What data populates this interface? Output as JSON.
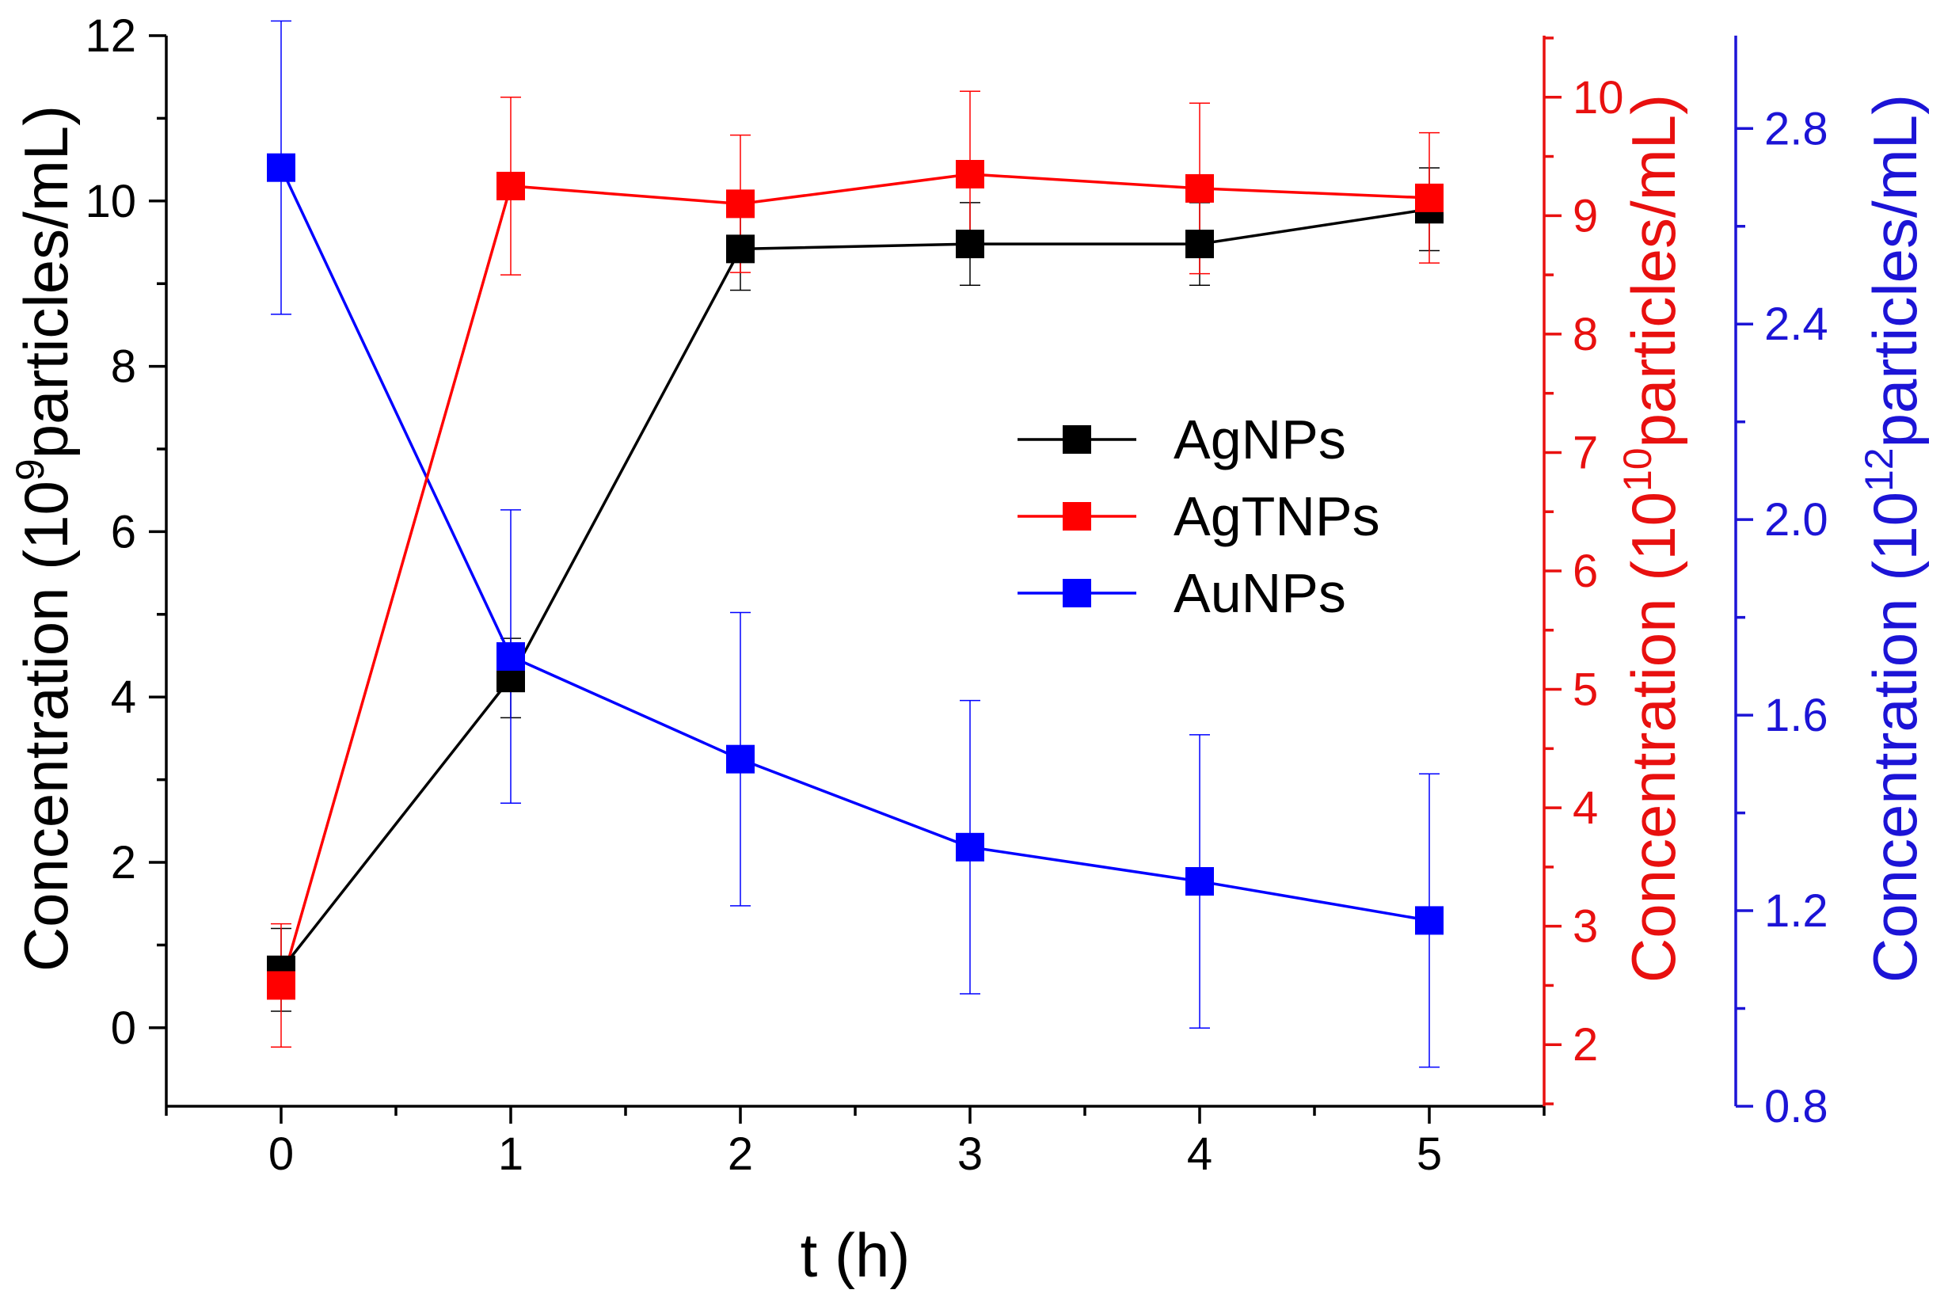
{
  "chart_data": {
    "type": "line",
    "x": [
      0,
      1,
      2,
      3,
      4,
      5
    ],
    "x_ticks": [
      "0",
      "1",
      "2",
      "3",
      "4",
      "5"
    ],
    "xlabel": "t (h)",
    "xlim": [
      -0.5,
      5.5
    ],
    "legend_position": "center-right",
    "grid": false,
    "y_axes": {
      "left": {
        "label_main": "Concentration (10",
        "label_sup": "9",
        "label_tail": "particles/mL)",
        "color": "#000000",
        "ylim": [
          -0.95,
          12
        ],
        "ticks": [
          0,
          2,
          4,
          6,
          8,
          10,
          12
        ],
        "tick_labels": [
          "0",
          "2",
          "4",
          "6",
          "8",
          "10",
          "12"
        ]
      },
      "right1": {
        "label_main": "Concentration (10",
        "label_sup": "10",
        "label_tail": "particles/mL)",
        "color": "#e8100f",
        "ylim": [
          1.48,
          10.52
        ],
        "ticks": [
          2,
          3,
          4,
          5,
          6,
          7,
          8,
          9,
          10
        ],
        "tick_labels": [
          "2",
          "3",
          "4",
          "5",
          "6",
          "7",
          "8",
          "9",
          "10"
        ]
      },
      "right2": {
        "label_main": "Concentration (10",
        "label_sup": "12",
        "label_tail": "particles/mL)",
        "color": "#1c14d6",
        "ylim": [
          0.8,
          2.99
        ],
        "ticks": [
          0.8,
          1.2,
          1.6,
          2.0,
          2.4,
          2.8
        ],
        "tick_labels": [
          "0.8",
          "1.2",
          "1.6",
          "2.0",
          "2.4",
          "2.8"
        ]
      }
    },
    "series": [
      {
        "name": "AgNPs",
        "axis": "left",
        "color": "#000000",
        "values": [
          0.7,
          4.23,
          9.42,
          9.48,
          9.48,
          9.9
        ],
        "errors": [
          0.5,
          0.48,
          0.5,
          0.5,
          0.5,
          0.5
        ]
      },
      {
        "name": "AgTNPs",
        "axis": "right1",
        "color": "#ff0000",
        "values": [
          2.5,
          9.25,
          9.1,
          9.35,
          9.23,
          9.15
        ],
        "errors": [
          0.52,
          0.75,
          0.58,
          0.7,
          0.72,
          0.55
        ]
      },
      {
        "name": "AuNPs",
        "axis": "right2",
        "color": "#0000ff",
        "values": [
          2.72,
          1.72,
          1.51,
          1.33,
          1.26,
          1.18
        ],
        "errors": [
          0.3,
          0.3,
          0.3,
          0.3,
          0.3,
          0.3
        ]
      }
    ]
  }
}
